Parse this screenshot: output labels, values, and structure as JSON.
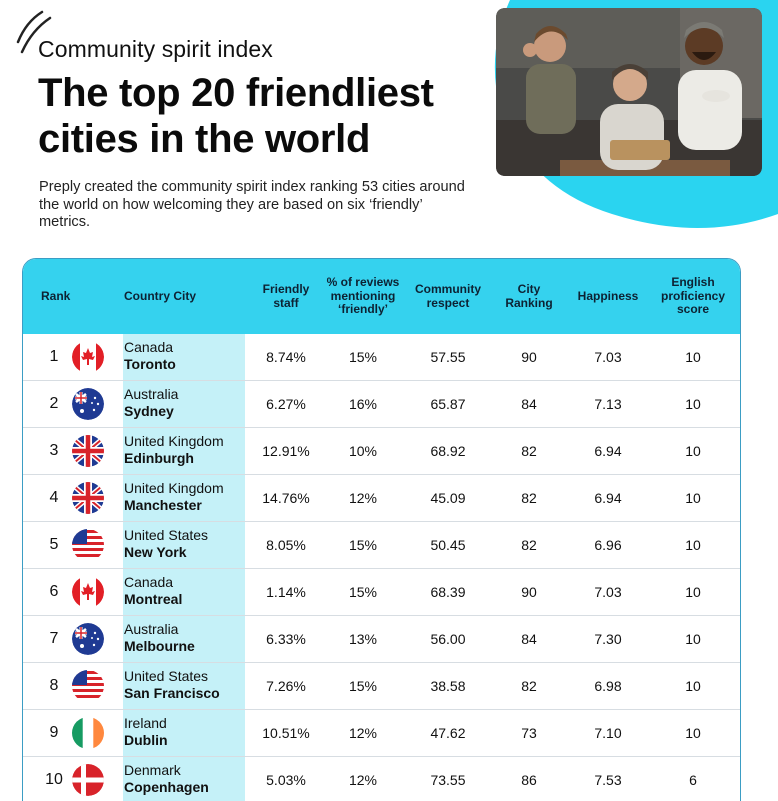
{
  "header": {
    "eyebrow": "Community spirit index",
    "headline": "The top 20 friendliest cities in the world",
    "description": "Preply created the community spirit index ranking 53 cities around the world on how welcoming they are based on six ‘friendly’ metrics."
  },
  "colors": {
    "accent": "#35d2ee",
    "country_band": "#c5f1f8",
    "border": "#3b9dc4"
  },
  "table": {
    "columns": {
      "rank": "Rank",
      "country_city": "Country City",
      "friendly_staff": "Friendly staff",
      "reviews": "% of reviews mentioning ‘friendly’",
      "community_respect": "Community respect",
      "city_ranking": "City Ranking",
      "happiness": "Happiness",
      "english": "English proficiency score"
    },
    "rows": [
      {
        "rank": "1",
        "flag": "canada-flag",
        "country": "Canada",
        "city": "Toronto",
        "friendly_staff": "8.74%",
        "reviews": "15%",
        "community_respect": "57.55",
        "city_ranking": "90",
        "happiness": "7.03",
        "english": "10"
      },
      {
        "rank": "2",
        "flag": "australia-flag",
        "country": "Australia",
        "city": "Sydney",
        "friendly_staff": "6.27%",
        "reviews": "16%",
        "community_respect": "65.87",
        "city_ranking": "84",
        "happiness": "7.13",
        "english": "10"
      },
      {
        "rank": "3",
        "flag": "uk-flag",
        "country": "United Kingdom",
        "city": "Edinburgh",
        "friendly_staff": "12.91%",
        "reviews": "10%",
        "community_respect": "68.92",
        "city_ranking": "82",
        "happiness": "6.94",
        "english": "10"
      },
      {
        "rank": "4",
        "flag": "uk-flag",
        "country": "United Kingdom",
        "city": "Manchester",
        "friendly_staff": "14.76%",
        "reviews": "12%",
        "community_respect": "45.09",
        "city_ranking": "82",
        "happiness": "6.94",
        "english": "10"
      },
      {
        "rank": "5",
        "flag": "usa-flag",
        "country": "United States",
        "city": "New York",
        "friendly_staff": "8.05%",
        "reviews": "15%",
        "community_respect": "50.45",
        "city_ranking": "82",
        "happiness": "6.96",
        "english": "10"
      },
      {
        "rank": "6",
        "flag": "canada-flag",
        "country": "Canada",
        "city": "Montreal",
        "friendly_staff": "1.14%",
        "reviews": "15%",
        "community_respect": "68.39",
        "city_ranking": "90",
        "happiness": "7.03",
        "english": "10"
      },
      {
        "rank": "7",
        "flag": "australia-flag",
        "country": "Australia",
        "city": "Melbourne",
        "friendly_staff": "6.33%",
        "reviews": "13%",
        "community_respect": "56.00",
        "city_ranking": "84",
        "happiness": "7.30",
        "english": "10"
      },
      {
        "rank": "8",
        "flag": "usa-flag",
        "country": "United States",
        "city": "San Francisco",
        "friendly_staff": "7.26%",
        "reviews": "15%",
        "community_respect": "38.58",
        "city_ranking": "82",
        "happiness": "6.98",
        "english": "10"
      },
      {
        "rank": "9",
        "flag": "ireland-flag",
        "country": "Ireland",
        "city": "Dublin",
        "friendly_staff": "10.51%",
        "reviews": "12%",
        "community_respect": "47.62",
        "city_ranking": "73",
        "happiness": "7.10",
        "english": "10"
      },
      {
        "rank": "10",
        "flag": "denmark-flag",
        "country": "Denmark",
        "city": "Copenhagen",
        "friendly_staff": "5.03%",
        "reviews": "12%",
        "community_respect": "73.55",
        "city_ranking": "86",
        "happiness": "7.53",
        "english": "6"
      }
    ]
  }
}
